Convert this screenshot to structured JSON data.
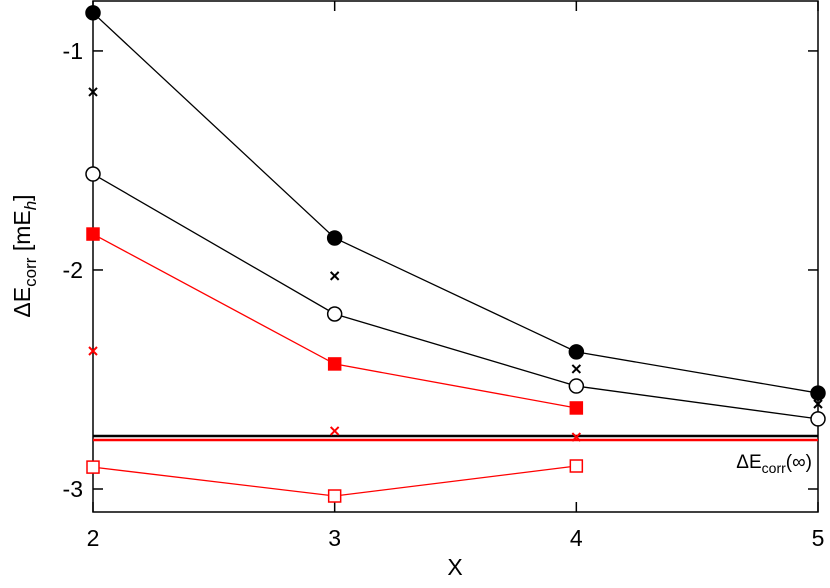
{
  "chart_data": {
    "type": "line",
    "x_label": "X",
    "y_label": [
      "ΔE",
      "corr",
      " [mE",
      "h",
      "]"
    ],
    "annotation": [
      "ΔE",
      "corr",
      "(∞)"
    ],
    "x": [
      2,
      3,
      4,
      5
    ],
    "xlim": [
      2,
      5
    ],
    "xticks": [
      2,
      3,
      4,
      5
    ],
    "ylim": [
      -3.105,
      -0.772
    ],
    "yticks": [
      -1,
      -2,
      -3
    ],
    "series": [
      {
        "color": "#000000",
        "marker": "circle-filled",
        "line": true,
        "values": [
          -0.826,
          -1.854,
          -2.374,
          -2.562
        ]
      },
      {
        "color": "#000000",
        "marker": "cross",
        "line": false,
        "values": [
          -1.187,
          -2.027,
          -2.452,
          -2.612
        ]
      },
      {
        "color": "#000000",
        "marker": "circle-open",
        "line": true,
        "values": [
          -1.562,
          -2.201,
          -2.53,
          -2.68
        ]
      },
      {
        "color": "#ff0000",
        "marker": "square-filled",
        "line": true,
        "values": [
          -1.836,
          -2.429,
          -2.63,
          null
        ]
      },
      {
        "color": "#ff0000",
        "marker": "cross",
        "line": false,
        "values": [
          -2.37,
          -2.735,
          -2.763,
          null
        ]
      },
      {
        "color": "#ff0000",
        "marker": "square-open",
        "line": true,
        "values": [
          -2.9,
          -3.032,
          -2.895,
          null
        ]
      }
    ],
    "hlines": [
      {
        "value": -2.758,
        "color": "#000000"
      },
      {
        "value": -2.776,
        "color": "#ff0000"
      }
    ]
  }
}
